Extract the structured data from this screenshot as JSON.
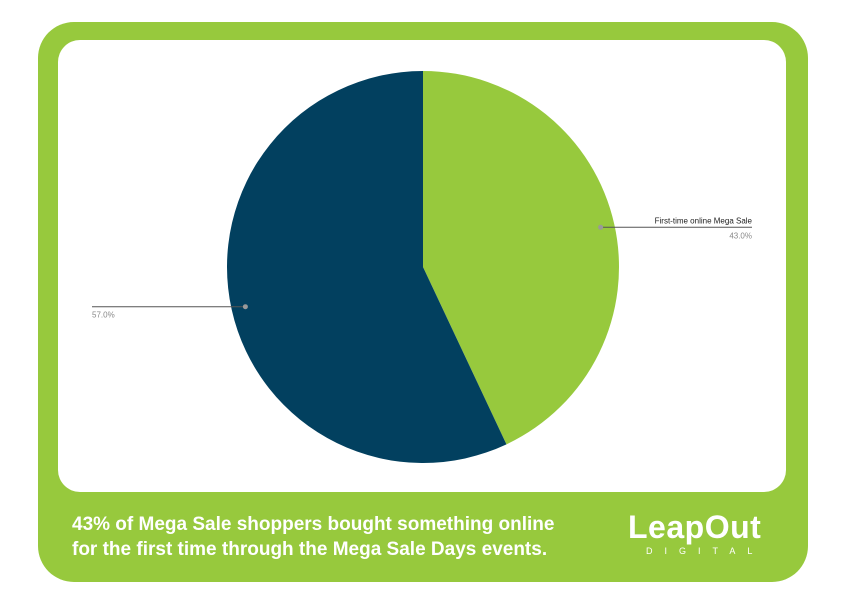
{
  "colors": {
    "frame": "#97c93d",
    "slice_green": "#97c93d",
    "slice_navy": "#02405f"
  },
  "chart_data": {
    "type": "pie",
    "slices": [
      {
        "label": "First-time online Mega Sale",
        "value": 43.0,
        "pct_label": "43.0%",
        "color": "#97c93d"
      },
      {
        "label": "",
        "value": 57.0,
        "pct_label": "57.0%",
        "color": "#02405f"
      }
    ]
  },
  "caption": {
    "line1": "43% of Mega Sale shoppers bought something online",
    "line2": "for the first time through the Mega Sale Days events."
  },
  "logo": {
    "word": "LeapOut",
    "sub": "DIGITAL",
    "icon": "paw-o-icon"
  }
}
